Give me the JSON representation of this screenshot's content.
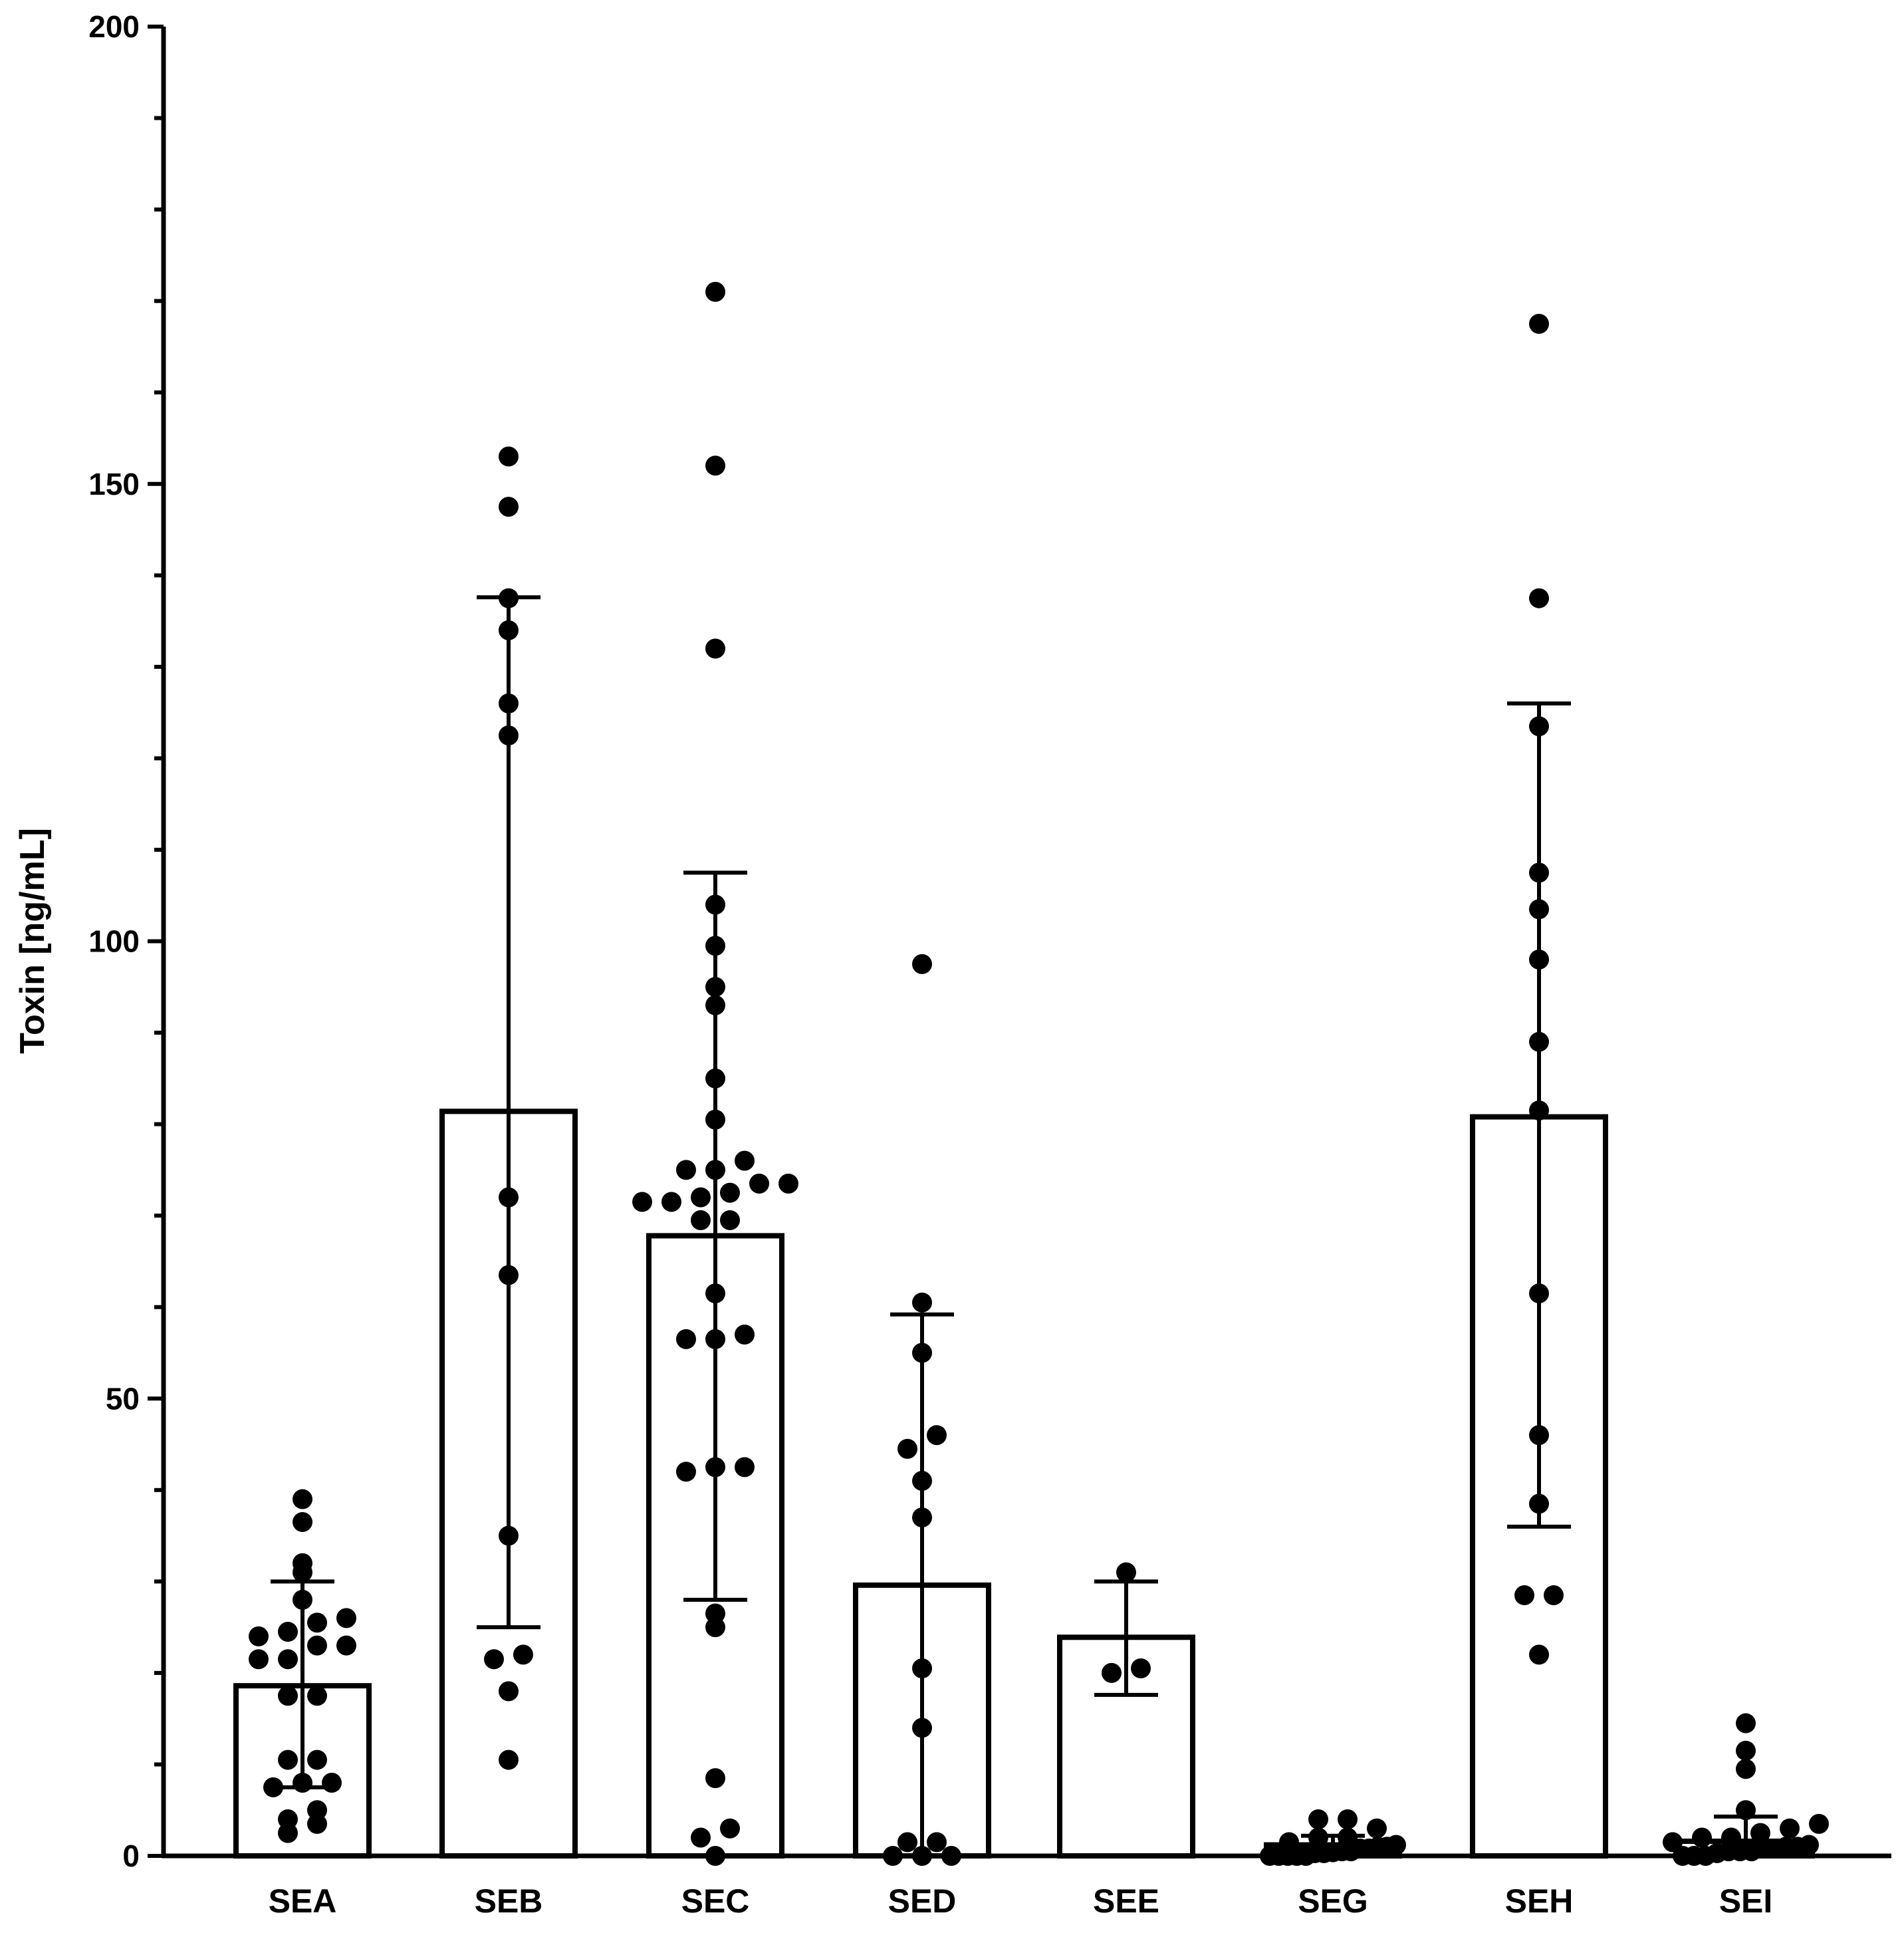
{
  "chart_data": {
    "type": "bar",
    "title": "",
    "xlabel": "",
    "ylabel": "Toxin [ng/mL]",
    "ylim": [
      0,
      200
    ],
    "yticks": [
      0,
      50,
      100,
      150,
      200
    ],
    "yminor_step": 10,
    "categories": [
      "SEA",
      "SEB",
      "SEC",
      "SED",
      "SEE",
      "SEG",
      "SEH",
      "SEI"
    ],
    "bar_fill": "#ffffff",
    "bar_stroke": "#000000",
    "point_color": "#000000",
    "grid": false,
    "legend": "none",
    "bars": [
      {
        "category": "SEA",
        "mean": 18.6,
        "error_low": 7.5,
        "error_high": 30.0,
        "points": [
          2.5,
          3.5,
          4.0,
          5.0,
          7.5,
          8.0,
          8.0,
          10.5,
          10.5,
          17.5,
          17.5,
          21.5,
          21.5,
          23.0,
          23.0,
          24.0,
          24.5,
          25.5,
          26.0,
          28.0,
          31.0,
          32.0,
          36.5,
          39.0
        ]
      },
      {
        "category": "SEB",
        "mean": 81.4,
        "error_low": 25.0,
        "error_high": 137.6,
        "points": [
          10.5,
          18.0,
          21.5,
          22.0,
          35.0,
          63.5,
          72.0,
          122.5,
          126.0,
          134.0,
          137.5,
          147.5,
          153.0
        ]
      },
      {
        "category": "SEC",
        "mean": 67.8,
        "error_low": 28.0,
        "error_high": 107.5,
        "points": [
          0.0,
          2.0,
          3.0,
          8.5,
          25.0,
          26.5,
          42.0,
          42.5,
          42.5,
          56.5,
          56.5,
          57.0,
          61.5,
          69.5,
          69.5,
          71.5,
          71.5,
          72.0,
          72.5,
          73.5,
          73.5,
          75.0,
          75.0,
          76.0,
          80.5,
          85.0,
          93.0,
          95.0,
          99.5,
          104.0,
          132.0,
          152.0,
          171.0
        ]
      },
      {
        "category": "SED",
        "mean": 29.6,
        "error_low": 0.0,
        "error_high": 59.2,
        "points": [
          0.0,
          0.0,
          0.0,
          1.5,
          1.5,
          14.0,
          20.5,
          37.0,
          41.0,
          44.5,
          46.0,
          55.0,
          60.5,
          97.5
        ]
      },
      {
        "category": "SEE",
        "mean": 23.9,
        "error_low": 17.6,
        "error_high": 30.0,
        "points": [
          20.0,
          20.5,
          31.0
        ]
      },
      {
        "category": "SEG",
        "mean": 1.2,
        "error_low": 0.0,
        "error_high": 2.2,
        "points": [
          0.0,
          0.0,
          0.0,
          0.0,
          0.0,
          0.3,
          0.3,
          0.4,
          0.5,
          0.5,
          0.8,
          0.8,
          1.0,
          1.0,
          1.2,
          1.5,
          2.0,
          2.0,
          3.0,
          4.0,
          4.0
        ]
      },
      {
        "category": "SEH",
        "mean": 80.8,
        "error_low": 36.0,
        "error_high": 126.0,
        "points": [
          22.0,
          28.5,
          28.5,
          38.5,
          46.0,
          61.5,
          81.5,
          89.0,
          98.0,
          103.5,
          107.5,
          123.5,
          137.5,
          167.5
        ]
      },
      {
        "category": "SEI",
        "mean": 1.6,
        "error_low": 0.0,
        "error_high": 4.3,
        "points": [
          0.0,
          0.0,
          0.0,
          0.3,
          0.5,
          0.5,
          0.5,
          0.8,
          0.8,
          1.0,
          1.0,
          1.2,
          1.5,
          2.0,
          2.0,
          2.5,
          3.0,
          3.5,
          5.0,
          9.5,
          11.5,
          14.5
        ]
      }
    ]
  }
}
